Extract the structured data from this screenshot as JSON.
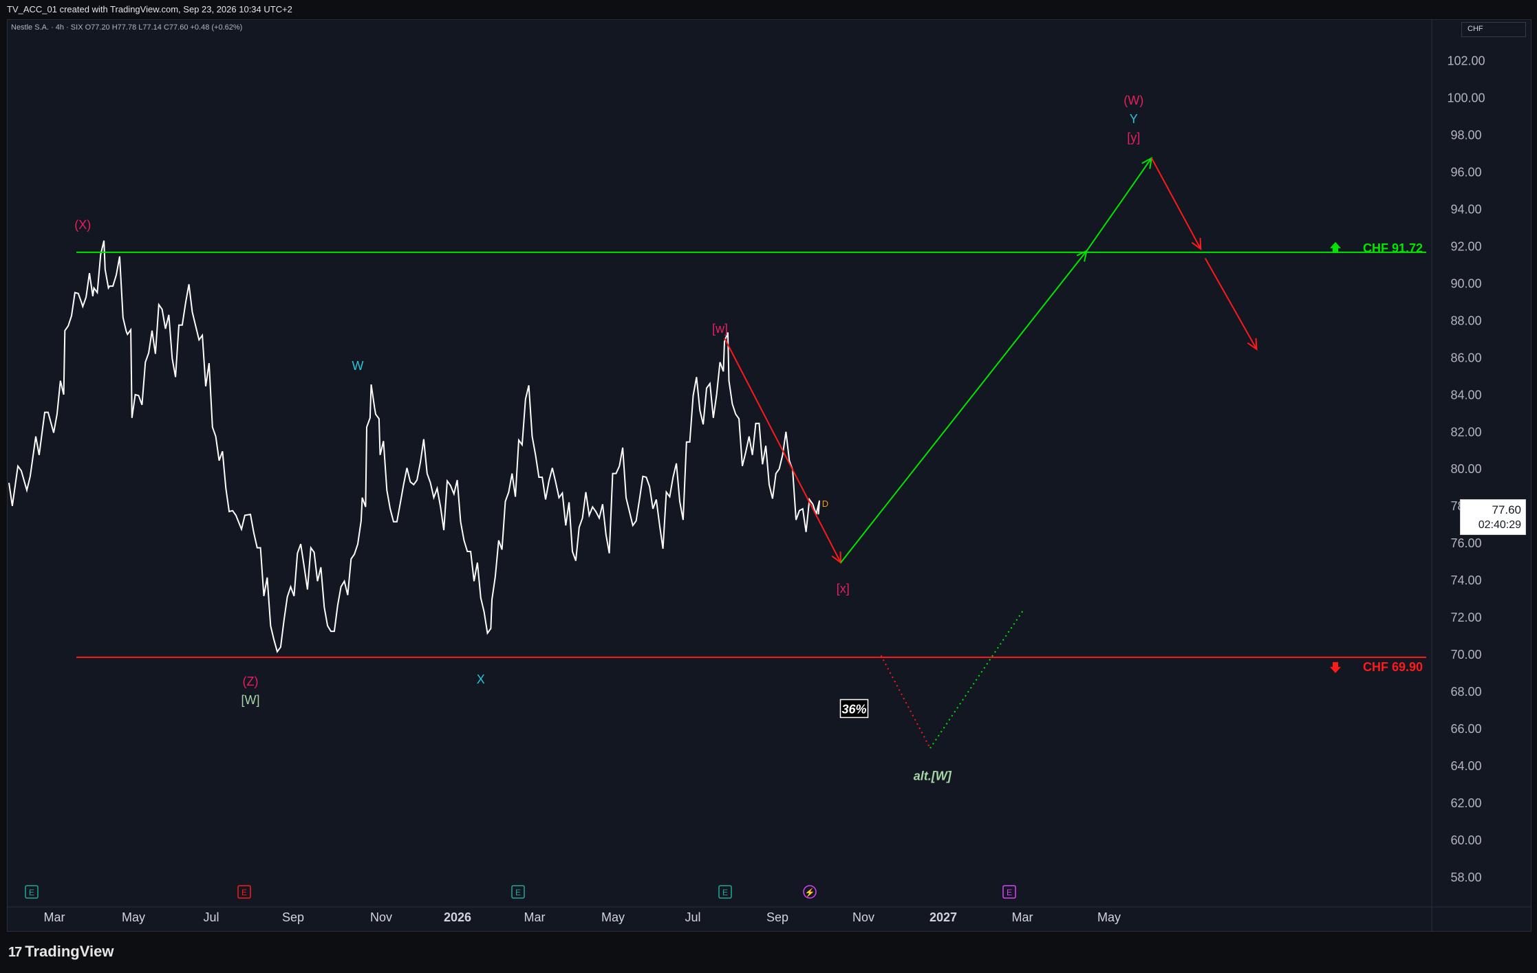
{
  "header": {
    "created_text": "TV_ACC_01 created with TradingView.com, Sep 23, 2026 10:34 UTC+2"
  },
  "symbol_line": "Nestle S.A. · 4h · SIX  O77.20  H77.78  L77.14  C77.60  +0.48 (+0.62%)",
  "currency": "CHF",
  "last_price": {
    "value": "77.60",
    "countdown": "02:40:29"
  },
  "colors": {
    "background": "#131722",
    "price_line": "#ffffff",
    "green": "#00e600",
    "red": "#ff1a1a",
    "magenta": "#e91e63",
    "cyan": "#26c6da",
    "light_green": "#a5d6a7"
  },
  "chart_data": {
    "type": "line",
    "title": "",
    "xlabel": "",
    "ylabel": "",
    "ylim": [
      57,
      103.5
    ],
    "x_tick_labels": [
      "Mar",
      "May",
      "Jul",
      "Sep",
      "Nov",
      "2026",
      "Mar",
      "May",
      "Jul",
      "Sep",
      "Nov",
      "2027",
      "Mar",
      "May"
    ],
    "y_tick_labels": [
      "102.00",
      "100.00",
      "98.00",
      "96.00",
      "94.00",
      "92.00",
      "90.00",
      "88.00",
      "86.00",
      "84.00",
      "82.00",
      "80.00",
      "78.00",
      "76.00",
      "74.00",
      "72.00",
      "70.00",
      "68.00",
      "66.00",
      "64.00",
      "62.00",
      "60.00",
      "58.00"
    ],
    "series": [
      {
        "values": [
          [
            0,
            79.3
          ],
          [
            4,
            80.2
          ],
          [
            8,
            78.9
          ],
          [
            12,
            81.8
          ],
          [
            16,
            83.1
          ],
          [
            20,
            82.0
          ],
          [
            23,
            84.8
          ],
          [
            25,
            87.5
          ],
          [
            28,
            88.3
          ],
          [
            31,
            89.5
          ],
          [
            33,
            88.8
          ],
          [
            36,
            90.6
          ],
          [
            38,
            89.8
          ],
          [
            41,
            91.6
          ],
          [
            43,
            90.8
          ],
          [
            45,
            89.9
          ],
          [
            48,
            90.5
          ],
          [
            51,
            88.2
          ],
          [
            53,
            87.3
          ],
          [
            55,
            82.8
          ],
          [
            58,
            84.0
          ],
          [
            61,
            85.8
          ],
          [
            64,
            87.5
          ],
          [
            67,
            88.9
          ],
          [
            70,
            87.6
          ],
          [
            73,
            86.0
          ],
          [
            76,
            87.8
          ],
          [
            79,
            89.0
          ],
          [
            82,
            88.5
          ],
          [
            85,
            87.0
          ],
          [
            88,
            84.5
          ],
          [
            91,
            82.3
          ],
          [
            94,
            80.5
          ],
          [
            97,
            79.0
          ],
          [
            100,
            77.8
          ],
          [
            104,
            76.8
          ],
          [
            108,
            77.6
          ],
          [
            111,
            75.8
          ],
          [
            114,
            73.2
          ],
          [
            117,
            71.6
          ],
          [
            120,
            70.2
          ],
          [
            123,
            71.9
          ],
          [
            126,
            73.7
          ],
          [
            129,
            75.5
          ],
          [
            132,
            74.8
          ],
          [
            135,
            75.8
          ],
          [
            138,
            74.0
          ],
          [
            141,
            72.6
          ],
          [
            144,
            71.3
          ],
          [
            147,
            72.7
          ],
          [
            150,
            74.0
          ],
          [
            153,
            75.2
          ],
          [
            156,
            76.0
          ],
          [
            158,
            78.5
          ],
          [
            160,
            82.3
          ],
          [
            162,
            84.6
          ],
          [
            164,
            83.0
          ],
          [
            166,
            80.8
          ],
          [
            169,
            78.9
          ],
          [
            172,
            77.2
          ],
          [
            175,
            78.2
          ],
          [
            178,
            80.1
          ],
          [
            181,
            79.2
          ],
          [
            184,
            80.4
          ],
          [
            187,
            79.8
          ],
          [
            190,
            78.5
          ],
          [
            193,
            78.0
          ],
          [
            196,
            79.4
          ],
          [
            199,
            78.7
          ],
          [
            202,
            77.2
          ],
          [
            205,
            75.6
          ],
          [
            208,
            74.0
          ],
          [
            211,
            73.1
          ],
          [
            214,
            71.2
          ],
          [
            216,
            73.0
          ],
          [
            219,
            76.2
          ],
          [
            222,
            78.3
          ],
          [
            225,
            79.8
          ],
          [
            228,
            81.6
          ],
          [
            231,
            83.8
          ],
          [
            234,
            81.8
          ],
          [
            237,
            79.6
          ],
          [
            240,
            78.4
          ],
          [
            243,
            80.1
          ],
          [
            246,
            78.5
          ],
          [
            249,
            77.0
          ],
          [
            252,
            75.6
          ],
          [
            255,
            76.9
          ],
          [
            258,
            78.8
          ],
          [
            261,
            78.0
          ],
          [
            264,
            77.4
          ],
          [
            267,
            76.5
          ],
          [
            270,
            79.8
          ],
          [
            273,
            80.2
          ],
          [
            276,
            78.5
          ],
          [
            279,
            77.0
          ],
          [
            282,
            78.4
          ],
          [
            285,
            79.6
          ],
          [
            288,
            77.9
          ],
          [
            291,
            77.0
          ],
          [
            294,
            78.8
          ],
          [
            297,
            79.6
          ],
          [
            300,
            78.3
          ],
          [
            303,
            81.5
          ],
          [
            306,
            84.0
          ],
          [
            309,
            83.2
          ],
          [
            312,
            84.4
          ],
          [
            315,
            82.8
          ],
          [
            318,
            85.8
          ],
          [
            320,
            86.9
          ],
          [
            322,
            84.8
          ],
          [
            325,
            83.0
          ],
          [
            328,
            80.2
          ],
          [
            331,
            81.8
          ],
          [
            334,
            82.5
          ],
          [
            337,
            80.3
          ],
          [
            340,
            79.2
          ],
          [
            343,
            79.8
          ],
          [
            346,
            80.8
          ],
          [
            349,
            80.5
          ],
          [
            352,
            77.3
          ],
          [
            355,
            77.9
          ],
          [
            358,
            78.4
          ],
          [
            361,
            77.6
          ],
          [
            362,
            77.6
          ]
        ]
      }
    ],
    "levels": [
      {
        "name": "CHF 91.72",
        "value": 91.72,
        "color": "#00e600",
        "marker": "up-arrow"
      },
      {
        "name": "CHF 69.90",
        "value": 69.9,
        "color": "#ff1a1a",
        "marker": "down-arrow"
      }
    ],
    "projections": [
      {
        "color": "#ff1a1a",
        "style": "solid",
        "arrow": true,
        "points": [
          [
            320,
            87.1
          ],
          [
            372,
            75.0
          ]
        ]
      },
      {
        "color": "#00e600",
        "style": "solid",
        "arrow": true,
        "points": [
          [
            372,
            75.0
          ],
          [
            482,
            91.8
          ]
        ]
      },
      {
        "color": "#00e600",
        "style": "solid",
        "arrow": true,
        "points": [
          [
            482,
            91.8
          ],
          [
            511,
            96.8
          ]
        ]
      },
      {
        "color": "#ff1a1a",
        "style": "solid",
        "arrow": true,
        "points": [
          [
            511,
            96.8
          ],
          [
            533,
            91.9
          ]
        ]
      },
      {
        "color": "#ff1a1a",
        "style": "solid",
        "arrow": true,
        "points": [
          [
            535,
            91.4
          ],
          [
            558,
            86.5
          ]
        ]
      },
      {
        "color": "#ff1a1a",
        "style": "dotted",
        "arrow": false,
        "points": [
          [
            390,
            70.0
          ],
          [
            412,
            65.0
          ]
        ]
      },
      {
        "color": "#00e600",
        "style": "dotted",
        "arrow": false,
        "points": [
          [
            412,
            65.0
          ],
          [
            454,
            72.5
          ]
        ]
      }
    ],
    "annotations": [
      {
        "text": "(X)",
        "x": 33,
        "y": 93.2,
        "color": "#e91e63"
      },
      {
        "text": "(Z)",
        "x": 108,
        "y": 68.6,
        "color": "#e91e63"
      },
      {
        "text": "[W]",
        "x": 108,
        "y": 67.6,
        "color": "#a5d6a7"
      },
      {
        "text": "W",
        "x": 156,
        "y": 85.6,
        "color": "#26c6da"
      },
      {
        "text": "X",
        "x": 211,
        "y": 68.7,
        "color": "#26c6da"
      },
      {
        "text": "[w]",
        "x": 318,
        "y": 87.6,
        "color": "#e91e63"
      },
      {
        "text": "[x]",
        "x": 373,
        "y": 73.6,
        "color": "#e91e63"
      },
      {
        "text": "36%",
        "x": 378,
        "y": 67.1,
        "color": "#ffffff",
        "boxed": true
      },
      {
        "text": "alt.[W]",
        "x": 413,
        "y": 63.5,
        "color": "#a5d6a7",
        "italic": true
      },
      {
        "text": "(W)",
        "x": 503,
        "y": 99.9,
        "color": "#e91e63"
      },
      {
        "text": "Y",
        "x": 503,
        "y": 98.9,
        "color": "#26c6da"
      },
      {
        "text": "[y]",
        "x": 503,
        "y": 97.9,
        "color": "#e91e63"
      }
    ],
    "events": [
      {
        "label": "E",
        "x": 8,
        "color": "#26a69a"
      },
      {
        "label": "E",
        "x": 104,
        "color": "#ff1a1a"
      },
      {
        "label": "E",
        "x": 226,
        "color": "#26a69a"
      },
      {
        "label": "E",
        "x": 318,
        "color": "#26a69a"
      },
      {
        "label": "⚡",
        "x": 357,
        "color": "#e040fb"
      },
      {
        "label": "E",
        "x": 447,
        "color": "#e040fb"
      }
    ],
    "marker_D": {
      "text": "D",
      "x": 362,
      "y": 78.2,
      "color": "#ff9800"
    },
    "grid": false,
    "legend": "none"
  },
  "footer": {
    "brand": "TradingView"
  }
}
